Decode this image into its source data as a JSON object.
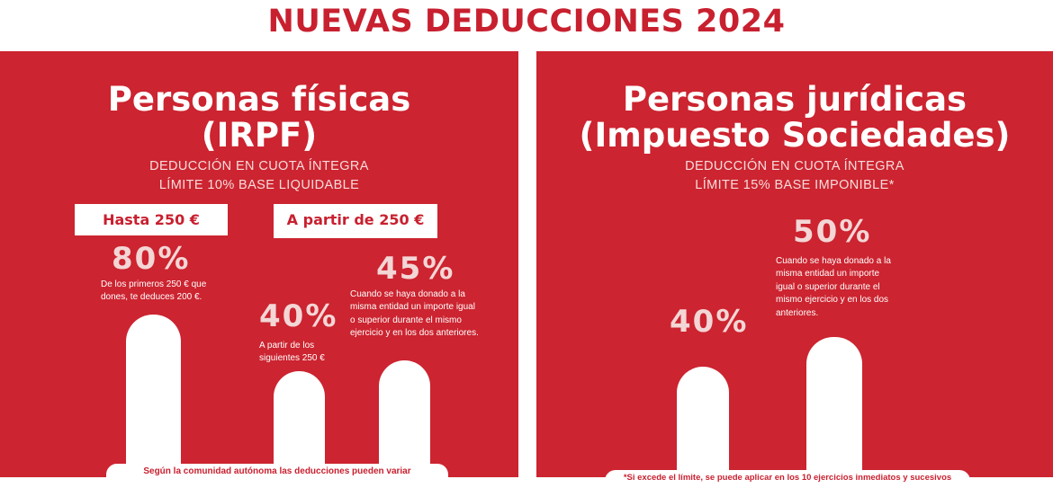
{
  "title": "NUEVAS DEDUCCIONES 2024",
  "left": {
    "heading_line1": "Personas físicas",
    "heading_line2": "(IRPF)",
    "sub_line1": "DEDUCCIÓN EN CUOTA ÍNTEGRA",
    "sub_line2": "LÍMITE 10% BASE LIQUIDABLE",
    "tag_a": "Hasta 250 €",
    "tag_b": "A partir de 250 €",
    "pct_80": "80%",
    "desc_80": "De los primeros 250 € que dones, te deduces 200 €.",
    "pct_40": "40%",
    "desc_40": "A partir de los siguientes 250 €",
    "pct_45": "45%",
    "desc_45": "Cuando se haya donado a la misma entidad un importe igual o superior durante el mismo ejercicio y en los dos anteriores.",
    "note": "Según la comunidad autónoma las deducciones pueden variar",
    "values": [
      80,
      40,
      45
    ]
  },
  "right": {
    "heading_line1": "Personas jurídicas",
    "heading_line2": "(Impuesto Sociedades)",
    "sub_line1": "DEDUCCIÓN EN CUOTA ÍNTEGRA",
    "sub_line2": "LÍMITE 15% BASE IMPONIBLE*",
    "pct_40": "40%",
    "pct_50": "50%",
    "desc_50": "Cuando se haya donado a la misma entidad un importe igual o superior durante el mismo ejercicio y en los dos anteriores.",
    "note": "*Si excede el límite, se puede aplicar en los 10 ejercicios inmediatos y sucesivos",
    "values": [
      40,
      50
    ]
  },
  "colors": {
    "brand_red": "#c8202f",
    "panel_red": "#cc2430",
    "white": "#ffffff"
  }
}
